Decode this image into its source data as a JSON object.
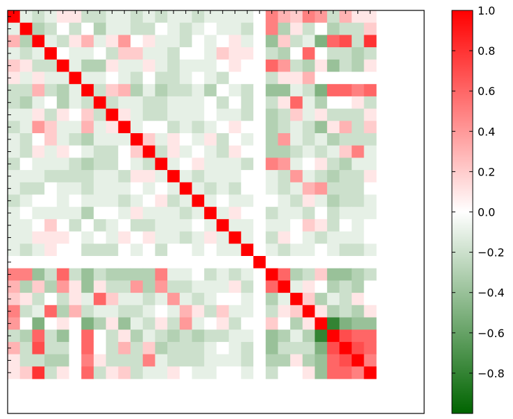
{
  "chart_data": {
    "type": "heatmap",
    "title": "",
    "xlabel": "",
    "ylabel": "",
    "n": 30,
    "matrix_pattern": [
      [
        1.0,
        -0.1,
        -0.2,
        -0.1,
        0.1,
        0.1,
        -0.2,
        -0.2,
        -0.1,
        -0.1,
        -0.2,
        -0.1,
        -0.2,
        -0.1,
        -0.1,
        -0.2,
        -0.1,
        -0.1,
        -0.1,
        -0.1,
        0.0,
        0.5,
        0.3,
        0.2,
        0.5,
        0.4,
        -0.2,
        0.3,
        0.1,
        0.1
      ],
      [
        -0.1,
        1.0,
        -0.3,
        -0.2,
        0.0,
        -0.2,
        0.0,
        -0.3,
        -0.1,
        -0.1,
        -0.2,
        -0.2,
        0.0,
        -0.1,
        -0.2,
        -0.1,
        0.0,
        -0.1,
        -0.1,
        -0.2,
        0.0,
        0.5,
        -0.3,
        0.1,
        -0.2,
        0.0,
        -0.3,
        -0.2,
        -0.2,
        0.2
      ],
      [
        0.3,
        -0.3,
        1.0,
        -0.1,
        -0.2,
        0.1,
        0.3,
        -0.1,
        0.1,
        0.4,
        0.0,
        0.1,
        -0.1,
        -0.1,
        -0.2,
        0.0,
        -0.1,
        0.0,
        0.1,
        -0.1,
        0.0,
        -0.4,
        0.2,
        -0.2,
        -0.1,
        -0.5,
        0.6,
        0.7,
        -0.2,
        0.8
      ],
      [
        -0.1,
        -0.2,
        -0.1,
        1.0,
        0.0,
        -0.1,
        -0.1,
        0.0,
        -0.2,
        0.2,
        0.2,
        -0.1,
        -0.1,
        -0.2,
        0.0,
        0.0,
        -0.1,
        0.2,
        0.1,
        0.1,
        0.0,
        -0.2,
        -0.3,
        0.0,
        0.6,
        0.0,
        -0.2,
        -0.2,
        -0.3,
        -0.2
      ],
      [
        0.2,
        0.1,
        -0.2,
        -0.2,
        1.0,
        -0.1,
        -0.3,
        -0.3,
        0.1,
        -0.1,
        -0.1,
        0.1,
        -0.1,
        -0.2,
        -0.1,
        -0.1,
        -0.1,
        0.0,
        0.1,
        0.0,
        0.0,
        0.6,
        0.4,
        -0.2,
        -0.3,
        0.1,
        -0.4,
        -0.2,
        -0.3,
        0.1
      ],
      [
        0.1,
        -0.1,
        0.1,
        -0.1,
        -0.1,
        1.0,
        -0.1,
        -0.1,
        0.0,
        -0.1,
        -0.2,
        0.0,
        -0.2,
        -0.2,
        -0.1,
        0.0,
        -0.1,
        -0.2,
        0.0,
        0.0,
        0.0,
        -0.2,
        0.1,
        0.1,
        0.3,
        0.0,
        0.0,
        0.0,
        0.0,
        0.0
      ],
      [
        -0.2,
        -0.2,
        0.3,
        -0.2,
        -0.3,
        -0.1,
        1.0,
        -0.2,
        0.2,
        0.3,
        -0.3,
        -0.1,
        -0.3,
        -0.2,
        -0.2,
        -0.1,
        -0.3,
        0.0,
        -0.1,
        -0.2,
        0.0,
        -0.4,
        -0.4,
        -0.1,
        -0.2,
        -0.5,
        0.6,
        0.6,
        0.5,
        0.6
      ],
      [
        -0.2,
        -0.3,
        -0.1,
        0.0,
        -0.3,
        -0.1,
        -0.2,
        1.0,
        -0.2,
        -0.1,
        -0.1,
        -0.2,
        -0.2,
        -0.1,
        -0.1,
        -0.1,
        0.0,
        -0.2,
        0.0,
        -0.2,
        0.0,
        -0.2,
        0.1,
        0.6,
        -0.1,
        -0.3,
        0.0,
        0.0,
        0.1,
        -0.2
      ],
      [
        -0.1,
        -0.1,
        0.1,
        -0.2,
        0.1,
        0.0,
        0.2,
        -0.2,
        1.0,
        0.1,
        -0.1,
        -0.2,
        -0.2,
        -0.1,
        -0.1,
        -0.1,
        0.0,
        -0.1,
        -0.1,
        -0.2,
        0.0,
        -0.3,
        -0.2,
        0.2,
        -0.1,
        0.1,
        -0.2,
        -0.2,
        -0.2,
        0.1
      ],
      [
        -0.2,
        -0.1,
        0.4,
        0.2,
        -0.1,
        -0.1,
        0.3,
        -0.1,
        0.1,
        1.0,
        -0.1,
        0.0,
        0.0,
        -0.2,
        -0.1,
        -0.2,
        -0.1,
        0.0,
        0.1,
        0.0,
        0.0,
        -0.3,
        -0.2,
        -0.1,
        -0.2,
        -0.4,
        0.1,
        0.3,
        -0.2,
        0.2
      ],
      [
        -0.1,
        -0.2,
        0.0,
        0.2,
        -0.1,
        -0.2,
        -0.3,
        -0.1,
        -0.1,
        -0.1,
        1.0,
        0.2,
        -0.1,
        0.1,
        0.0,
        -0.1,
        0.1,
        -0.2,
        0.0,
        -0.1,
        0.0,
        -0.3,
        0.4,
        -0.1,
        -0.2,
        -0.1,
        -0.3,
        -0.2,
        -0.2,
        -0.2
      ],
      [
        -0.1,
        -0.2,
        0.1,
        -0.1,
        0.1,
        0.0,
        -0.1,
        -0.2,
        -0.2,
        0.0,
        0.2,
        1.0,
        -0.2,
        0.1,
        -0.1,
        0.0,
        -0.1,
        -0.2,
        0.1,
        0.0,
        0.0,
        -0.3,
        -0.3,
        -0.2,
        -0.1,
        -0.2,
        -0.1,
        0.2,
        0.5,
        -0.1
      ],
      [
        -0.2,
        0.0,
        -0.1,
        -0.1,
        -0.1,
        -0.2,
        -0.3,
        -0.2,
        -0.2,
        0.0,
        -0.1,
        -0.2,
        1.0,
        -0.1,
        0.0,
        0.1,
        -0.1,
        -0.1,
        -0.1,
        -0.2,
        0.0,
        0.5,
        0.4,
        -0.1,
        0.0,
        0.1,
        -0.2,
        -0.3,
        -0.1,
        -0.1
      ],
      [
        -0.1,
        -0.1,
        -0.1,
        -0.2,
        -0.2,
        -0.2,
        -0.2,
        -0.1,
        -0.1,
        -0.2,
        0.1,
        0.1,
        -0.1,
        1.0,
        -0.1,
        -0.2,
        -0.1,
        -0.1,
        -0.1,
        0.0,
        0.0,
        -0.1,
        -0.2,
        0.4,
        -0.1,
        -0.2,
        -0.3,
        -0.2,
        -0.2,
        0.1
      ],
      [
        -0.1,
        -0.2,
        -0.2,
        0.0,
        -0.1,
        -0.1,
        -0.2,
        -0.1,
        -0.1,
        -0.1,
        0.0,
        -0.1,
        0.0,
        -0.1,
        1.0,
        -0.1,
        -0.2,
        -0.1,
        -0.2,
        0.0,
        0.0,
        -0.1,
        -0.2,
        -0.1,
        0.3,
        0.4,
        -0.2,
        -0.2,
        -0.2,
        0.0
      ],
      [
        -0.2,
        -0.1,
        0.0,
        0.0,
        -0.1,
        0.0,
        -0.1,
        -0.1,
        -0.1,
        -0.2,
        -0.1,
        0.0,
        0.1,
        -0.2,
        -0.1,
        1.0,
        -0.1,
        0.0,
        -0.1,
        -0.1,
        0.0,
        0.0,
        -0.1,
        -0.2,
        0.1,
        -0.1,
        -0.3,
        -0.2,
        -0.2,
        -0.1
      ],
      [
        -0.1,
        0.0,
        -0.1,
        -0.1,
        -0.1,
        -0.1,
        -0.3,
        0.0,
        0.0,
        -0.1,
        0.1,
        -0.1,
        -0.1,
        -0.1,
        -0.2,
        -0.1,
        1.0,
        -0.1,
        0.1,
        0.0,
        0.0,
        -0.2,
        -0.1,
        -0.1,
        -0.2,
        0.0,
        -0.2,
        -0.1,
        -0.1,
        -0.1
      ],
      [
        -0.1,
        -0.1,
        0.0,
        0.2,
        0.0,
        -0.2,
        0.0,
        -0.2,
        -0.1,
        0.0,
        -0.2,
        -0.2,
        -0.1,
        -0.1,
        -0.1,
        0.0,
        -0.1,
        1.0,
        -0.1,
        -0.1,
        0.0,
        -0.1,
        -0.1,
        0.0,
        0.2,
        0.1,
        -0.2,
        0.0,
        -0.1,
        0.0
      ],
      [
        -0.1,
        -0.1,
        0.1,
        0.1,
        0.1,
        0.0,
        -0.1,
        0.0,
        -0.1,
        0.1,
        0.0,
        0.1,
        -0.1,
        -0.1,
        -0.2,
        -0.1,
        0.1,
        -0.1,
        1.0,
        -0.1,
        0.0,
        -0.2,
        0.1,
        0.0,
        -0.1,
        -0.2,
        -0.1,
        -0.1,
        -0.1,
        0.0
      ],
      [
        -0.1,
        -0.2,
        -0.1,
        0.1,
        0.0,
        0.0,
        -0.2,
        -0.2,
        -0.2,
        0.0,
        -0.1,
        0.0,
        -0.2,
        0.0,
        0.0,
        -0.1,
        0.0,
        -0.1,
        -0.1,
        1.0,
        0.0,
        -0.1,
        -0.2,
        -0.1,
        -0.1,
        0.0,
        -0.1,
        -0.2,
        -0.2,
        -0.1
      ],
      [
        0.0,
        0.0,
        0.0,
        0.0,
        0.0,
        0.0,
        0.0,
        0.0,
        0.0,
        0.0,
        0.0,
        0.0,
        0.0,
        0.0,
        0.0,
        0.0,
        0.0,
        0.0,
        0.0,
        0.0,
        1.0,
        0.0,
        0.0,
        0.0,
        0.0,
        0.0,
        0.0,
        0.0,
        0.0,
        0.0
      ],
      [
        0.5,
        0.5,
        -0.4,
        -0.2,
        0.6,
        -0.2,
        -0.4,
        -0.2,
        -0.3,
        -0.3,
        -0.3,
        -0.3,
        0.5,
        -0.1,
        -0.1,
        0.0,
        -0.2,
        -0.1,
        -0.2,
        -0.1,
        0.0,
        1.0,
        0.6,
        -0.3,
        -0.2,
        0.2,
        -0.4,
        -0.4,
        -0.3,
        -0.2
      ],
      [
        0.3,
        -0.3,
        0.2,
        -0.3,
        0.4,
        0.1,
        -0.4,
        0.1,
        -0.2,
        -0.2,
        0.4,
        -0.3,
        0.4,
        -0.2,
        -0.2,
        -0.1,
        -0.1,
        -0.1,
        0.1,
        -0.2,
        0.0,
        0.6,
        1.0,
        -0.1,
        0.1,
        0.0,
        -0.3,
        -0.2,
        -0.3,
        0.0
      ],
      [
        0.2,
        0.1,
        -0.2,
        0.0,
        -0.2,
        0.1,
        -0.1,
        0.6,
        0.2,
        -0.1,
        -0.1,
        -0.2,
        -0.1,
        0.4,
        -0.1,
        -0.2,
        -0.1,
        0.0,
        0.0,
        -0.1,
        0.0,
        -0.3,
        -0.1,
        1.0,
        0.2,
        -0.3,
        -0.1,
        -0.2,
        0.1,
        0.0
      ],
      [
        0.5,
        -0.2,
        -0.1,
        0.6,
        -0.3,
        0.3,
        -0.2,
        -0.1,
        -0.1,
        -0.2,
        -0.2,
        -0.1,
        0.0,
        -0.1,
        0.3,
        0.1,
        -0.2,
        0.2,
        -0.1,
        -0.1,
        0.0,
        -0.2,
        0.1,
        0.2,
        1.0,
        0.1,
        -0.3,
        -0.2,
        -0.3,
        0.1
      ],
      [
        0.4,
        0.0,
        -0.5,
        0.0,
        0.1,
        0.0,
        -0.5,
        -0.3,
        0.1,
        -0.4,
        -0.1,
        -0.2,
        0.1,
        -0.2,
        0.4,
        -0.1,
        0.0,
        0.1,
        -0.2,
        0.0,
        0.0,
        0.2,
        0.0,
        -0.3,
        0.1,
        1.0,
        -0.8,
        -0.5,
        -0.4,
        -0.4
      ],
      [
        -0.2,
        -0.3,
        0.6,
        -0.2,
        -0.4,
        0.0,
        0.6,
        0.0,
        -0.2,
        0.1,
        -0.3,
        -0.1,
        -0.2,
        -0.3,
        -0.2,
        -0.3,
        -0.2,
        -0.2,
        -0.1,
        -0.1,
        0.0,
        -0.4,
        -0.3,
        -0.1,
        -0.3,
        -0.8,
        1.0,
        0.7,
        0.6,
        0.6
      ],
      [
        0.3,
        -0.2,
        0.7,
        -0.2,
        -0.2,
        0.0,
        0.6,
        0.0,
        -0.2,
        0.3,
        -0.2,
        0.2,
        -0.3,
        -0.2,
        -0.2,
        -0.2,
        -0.1,
        0.0,
        -0.1,
        -0.2,
        0.0,
        -0.4,
        -0.2,
        -0.2,
        -0.2,
        -0.5,
        0.7,
        1.0,
        0.7,
        0.6
      ],
      [
        0.1,
        -0.2,
        -0.2,
        -0.3,
        -0.3,
        0.0,
        0.5,
        0.1,
        -0.2,
        -0.2,
        -0.2,
        0.5,
        -0.1,
        -0.2,
        -0.2,
        -0.2,
        -0.1,
        -0.1,
        -0.1,
        -0.2,
        0.0,
        -0.3,
        -0.3,
        0.1,
        -0.3,
        -0.4,
        0.6,
        0.7,
        1.0,
        0.5
      ],
      [
        0.1,
        0.2,
        0.8,
        -0.2,
        0.1,
        0.0,
        0.6,
        -0.2,
        0.1,
        0.2,
        -0.2,
        -0.1,
        -0.1,
        0.1,
        0.0,
        -0.1,
        -0.1,
        0.0,
        0.0,
        -0.1,
        0.0,
        -0.2,
        0.0,
        0.0,
        0.1,
        -0.4,
        0.6,
        0.6,
        0.5,
        1.0
      ]
    ],
    "color_scale": {
      "vmin": -1.0,
      "vmax": 1.0,
      "stops": [
        {
          "value": -1.0,
          "color": "#006400"
        },
        {
          "value": 0.0,
          "color": "#ffffff"
        },
        {
          "value": 1.0,
          "color": "#ff0000"
        }
      ],
      "ticks": [
        1.0,
        0.8,
        0.6,
        0.4,
        0.2,
        0.0,
        -0.2,
        -0.4,
        -0.6,
        -0.8
      ],
      "tick_labels": [
        "1.0",
        "0.8",
        "0.6",
        "0.4",
        "0.2",
        "0.0",
        "−0.2",
        "−0.4",
        "−0.6",
        "−0.8"
      ]
    },
    "grid": false,
    "legend": "colorbar-right"
  }
}
